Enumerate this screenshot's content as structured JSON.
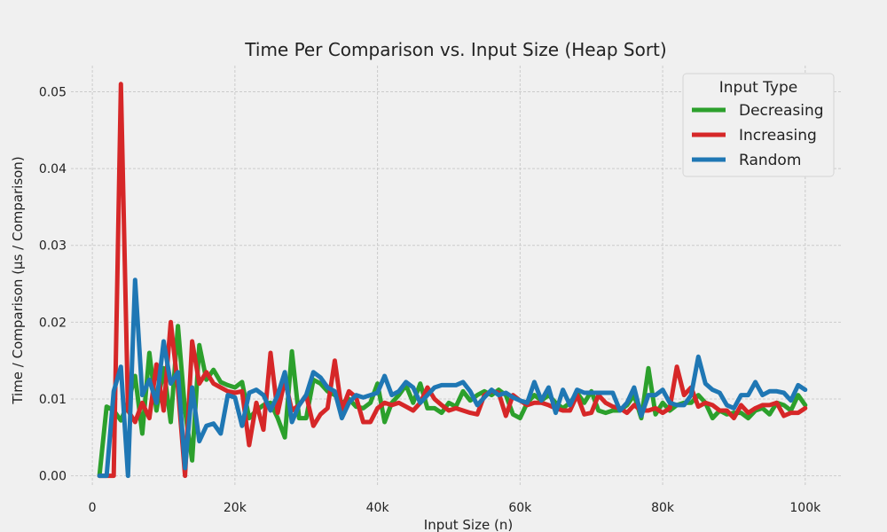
{
  "chart_data": {
    "type": "line",
    "title": "Time Per Comparison vs. Input Size (Heap Sort)",
    "xlabel": "Input Size (n)",
    "ylabel": "Time / Comparison (μs / Comparison)",
    "xlim": [
      -3000,
      105000
    ],
    "ylim": [
      -0.0012,
      0.0534
    ],
    "x_ticks": [
      0,
      20000,
      40000,
      60000,
      80000,
      100000
    ],
    "x_tick_labels": [
      "0",
      "20k",
      "40k",
      "60k",
      "80k",
      "100k"
    ],
    "y_ticks": [
      0.0,
      0.01,
      0.02,
      0.03,
      0.04,
      0.05
    ],
    "y_tick_labels": [
      "0.00",
      "0.01",
      "0.02",
      "0.03",
      "0.04",
      "0.05"
    ],
    "grid": true,
    "legend": {
      "title": "Input Type",
      "position": "top-right"
    },
    "series": [
      {
        "name": "Decreasing",
        "color": "#2ca02c",
        "points": [
          [
            1000,
            0.0
          ],
          [
            2000,
            0.009
          ],
          [
            3000,
            0.0085
          ],
          [
            4000,
            0.0072
          ],
          [
            5000,
            0.0095
          ],
          [
            6000,
            0.013
          ],
          [
            7000,
            0.0055
          ],
          [
            8000,
            0.016
          ],
          [
            9000,
            0.0085
          ],
          [
            10000,
            0.014
          ],
          [
            11000,
            0.007
          ],
          [
            12000,
            0.0195
          ],
          [
            13000,
            0.0085
          ],
          [
            14000,
            0.002
          ],
          [
            15000,
            0.017
          ],
          [
            16000,
            0.0125
          ],
          [
            17000,
            0.0138
          ],
          [
            18000,
            0.0122
          ],
          [
            19000,
            0.0118
          ],
          [
            20000,
            0.0115
          ],
          [
            21000,
            0.0122
          ],
          [
            22000,
            0.0075
          ],
          [
            23000,
            0.0085
          ],
          [
            24000,
            0.0092
          ],
          [
            25000,
            0.0095
          ],
          [
            26000,
            0.0075
          ],
          [
            27000,
            0.005
          ],
          [
            28000,
            0.0162
          ],
          [
            29000,
            0.0075
          ],
          [
            30000,
            0.0075
          ],
          [
            31000,
            0.0125
          ],
          [
            32000,
            0.012
          ],
          [
            33000,
            0.011
          ],
          [
            34000,
            0.0105
          ],
          [
            35000,
            0.0095
          ],
          [
            36000,
            0.01
          ],
          [
            37000,
            0.009
          ],
          [
            38000,
            0.0088
          ],
          [
            39000,
            0.0095
          ],
          [
            40000,
            0.012
          ],
          [
            41000,
            0.007
          ],
          [
            42000,
            0.0095
          ],
          [
            43000,
            0.0105
          ],
          [
            44000,
            0.0118
          ],
          [
            45000,
            0.0095
          ],
          [
            46000,
            0.012
          ],
          [
            47000,
            0.0088
          ],
          [
            48000,
            0.0088
          ],
          [
            49000,
            0.0082
          ],
          [
            50000,
            0.0095
          ],
          [
            51000,
            0.009
          ],
          [
            52000,
            0.011
          ],
          [
            53000,
            0.0098
          ],
          [
            54000,
            0.0105
          ],
          [
            55000,
            0.011
          ],
          [
            56000,
            0.0105
          ],
          [
            57000,
            0.0112
          ],
          [
            58000,
            0.0105
          ],
          [
            59000,
            0.008
          ],
          [
            60000,
            0.0075
          ],
          [
            61000,
            0.0095
          ],
          [
            62000,
            0.0105
          ],
          [
            63000,
            0.0098
          ],
          [
            64000,
            0.0105
          ],
          [
            65000,
            0.0095
          ],
          [
            66000,
            0.0088
          ],
          [
            67000,
            0.0095
          ],
          [
            68000,
            0.0108
          ],
          [
            69000,
            0.0095
          ],
          [
            70000,
            0.011
          ],
          [
            71000,
            0.0085
          ],
          [
            72000,
            0.0082
          ],
          [
            73000,
            0.0085
          ],
          [
            74000,
            0.0085
          ],
          [
            75000,
            0.0092
          ],
          [
            76000,
            0.0105
          ],
          [
            77000,
            0.0075
          ],
          [
            78000,
            0.014
          ],
          [
            79000,
            0.008
          ],
          [
            80000,
            0.0095
          ],
          [
            81000,
            0.0085
          ],
          [
            82000,
            0.0092
          ],
          [
            83000,
            0.0095
          ],
          [
            84000,
            0.0095
          ],
          [
            85000,
            0.0105
          ],
          [
            86000,
            0.0095
          ],
          [
            87000,
            0.0075
          ],
          [
            88000,
            0.0085
          ],
          [
            89000,
            0.008
          ],
          [
            90000,
            0.0082
          ],
          [
            91000,
            0.0082
          ],
          [
            92000,
            0.0075
          ],
          [
            93000,
            0.0085
          ],
          [
            94000,
            0.0088
          ],
          [
            95000,
            0.008
          ],
          [
            96000,
            0.0095
          ],
          [
            97000,
            0.0092
          ],
          [
            98000,
            0.0085
          ],
          [
            99000,
            0.0105
          ],
          [
            100000,
            0.0092
          ]
        ]
      },
      {
        "name": "Increasing",
        "color": "#d62728",
        "points": [
          [
            1000,
            0.0
          ],
          [
            2000,
            0.0
          ],
          [
            3000,
            0.0
          ],
          [
            4000,
            0.051
          ],
          [
            5000,
            0.0085
          ],
          [
            6000,
            0.007
          ],
          [
            7000,
            0.0095
          ],
          [
            8000,
            0.0075
          ],
          [
            9000,
            0.0145
          ],
          [
            10000,
            0.0085
          ],
          [
            11000,
            0.02
          ],
          [
            12000,
            0.0115
          ],
          [
            13000,
            0.0
          ],
          [
            14000,
            0.0175
          ],
          [
            15000,
            0.012
          ],
          [
            16000,
            0.0135
          ],
          [
            17000,
            0.012
          ],
          [
            18000,
            0.0115
          ],
          [
            19000,
            0.011
          ],
          [
            20000,
            0.0108
          ],
          [
            21000,
            0.011
          ],
          [
            22000,
            0.004
          ],
          [
            23000,
            0.0095
          ],
          [
            24000,
            0.006
          ],
          [
            25000,
            0.016
          ],
          [
            26000,
            0.0082
          ],
          [
            27000,
            0.0125
          ],
          [
            28000,
            0.0085
          ],
          [
            29000,
            0.0092
          ],
          [
            30000,
            0.0105
          ],
          [
            31000,
            0.0065
          ],
          [
            32000,
            0.008
          ],
          [
            33000,
            0.0088
          ],
          [
            34000,
            0.015
          ],
          [
            35000,
            0.0085
          ],
          [
            36000,
            0.011
          ],
          [
            37000,
            0.0102
          ],
          [
            38000,
            0.007
          ],
          [
            39000,
            0.007
          ],
          [
            40000,
            0.0088
          ],
          [
            41000,
            0.0095
          ],
          [
            42000,
            0.0092
          ],
          [
            43000,
            0.0095
          ],
          [
            44000,
            0.009
          ],
          [
            45000,
            0.0085
          ],
          [
            46000,
            0.0095
          ],
          [
            47000,
            0.0115
          ],
          [
            48000,
            0.01
          ],
          [
            49000,
            0.0092
          ],
          [
            50000,
            0.0085
          ],
          [
            51000,
            0.0088
          ],
          [
            52000,
            0.0085
          ],
          [
            53000,
            0.0082
          ],
          [
            54000,
            0.008
          ],
          [
            55000,
            0.0105
          ],
          [
            56000,
            0.011
          ],
          [
            57000,
            0.0108
          ],
          [
            58000,
            0.0078
          ],
          [
            59000,
            0.0105
          ],
          [
            60000,
            0.0098
          ],
          [
            61000,
            0.0092
          ],
          [
            62000,
            0.0095
          ],
          [
            63000,
            0.0095
          ],
          [
            64000,
            0.0092
          ],
          [
            65000,
            0.0088
          ],
          [
            66000,
            0.0085
          ],
          [
            67000,
            0.0085
          ],
          [
            68000,
            0.0105
          ],
          [
            69000,
            0.008
          ],
          [
            70000,
            0.0082
          ],
          [
            71000,
            0.0105
          ],
          [
            72000,
            0.0095
          ],
          [
            73000,
            0.009
          ],
          [
            74000,
            0.0088
          ],
          [
            75000,
            0.0082
          ],
          [
            76000,
            0.0092
          ],
          [
            77000,
            0.0085
          ],
          [
            78000,
            0.0085
          ],
          [
            79000,
            0.0088
          ],
          [
            80000,
            0.0082
          ],
          [
            81000,
            0.0088
          ],
          [
            82000,
            0.0142
          ],
          [
            83000,
            0.0105
          ],
          [
            84000,
            0.0115
          ],
          [
            85000,
            0.009
          ],
          [
            86000,
            0.0095
          ],
          [
            87000,
            0.0092
          ],
          [
            88000,
            0.0085
          ],
          [
            89000,
            0.0085
          ],
          [
            90000,
            0.0075
          ],
          [
            91000,
            0.0092
          ],
          [
            92000,
            0.0082
          ],
          [
            93000,
            0.0088
          ],
          [
            94000,
            0.0092
          ],
          [
            95000,
            0.0092
          ],
          [
            96000,
            0.0095
          ],
          [
            97000,
            0.0078
          ],
          [
            98000,
            0.0082
          ],
          [
            99000,
            0.0082
          ],
          [
            100000,
            0.0088
          ]
        ]
      },
      {
        "name": "Random",
        "color": "#1f77b4",
        "points": [
          [
            1000,
            0.0
          ],
          [
            2000,
            0.0
          ],
          [
            3000,
            0.011
          ],
          [
            4000,
            0.0142
          ],
          [
            5000,
            0.0
          ],
          [
            6000,
            0.0255
          ],
          [
            7000,
            0.0105
          ],
          [
            8000,
            0.0125
          ],
          [
            9000,
            0.0095
          ],
          [
            10000,
            0.0175
          ],
          [
            11000,
            0.012
          ],
          [
            12000,
            0.0135
          ],
          [
            13000,
            0.001
          ],
          [
            14000,
            0.0115
          ],
          [
            15000,
            0.0045
          ],
          [
            16000,
            0.0065
          ],
          [
            17000,
            0.0068
          ],
          [
            18000,
            0.0055
          ],
          [
            19000,
            0.0105
          ],
          [
            20000,
            0.0102
          ],
          [
            21000,
            0.0065
          ],
          [
            22000,
            0.0108
          ],
          [
            23000,
            0.0112
          ],
          [
            24000,
            0.0105
          ],
          [
            25000,
            0.0085
          ],
          [
            26000,
            0.0105
          ],
          [
            27000,
            0.0135
          ],
          [
            28000,
            0.007
          ],
          [
            29000,
            0.0092
          ],
          [
            30000,
            0.0105
          ],
          [
            31000,
            0.0135
          ],
          [
            32000,
            0.0128
          ],
          [
            33000,
            0.0115
          ],
          [
            34000,
            0.011
          ],
          [
            35000,
            0.0075
          ],
          [
            36000,
            0.0095
          ],
          [
            37000,
            0.0105
          ],
          [
            38000,
            0.0102
          ],
          [
            39000,
            0.0105
          ],
          [
            40000,
            0.0108
          ],
          [
            41000,
            0.013
          ],
          [
            42000,
            0.0105
          ],
          [
            43000,
            0.011
          ],
          [
            44000,
            0.0122
          ],
          [
            45000,
            0.0115
          ],
          [
            46000,
            0.0095
          ],
          [
            47000,
            0.0105
          ],
          [
            48000,
            0.0115
          ],
          [
            49000,
            0.0118
          ],
          [
            50000,
            0.0118
          ],
          [
            51000,
            0.0118
          ],
          [
            52000,
            0.0122
          ],
          [
            53000,
            0.011
          ],
          [
            54000,
            0.0092
          ],
          [
            55000,
            0.0102
          ],
          [
            56000,
            0.0112
          ],
          [
            57000,
            0.0105
          ],
          [
            58000,
            0.0108
          ],
          [
            59000,
            0.0102
          ],
          [
            60000,
            0.0098
          ],
          [
            61000,
            0.0095
          ],
          [
            62000,
            0.0122
          ],
          [
            63000,
            0.0098
          ],
          [
            64000,
            0.0115
          ],
          [
            65000,
            0.0082
          ],
          [
            66000,
            0.0112
          ],
          [
            67000,
            0.0092
          ],
          [
            68000,
            0.0112
          ],
          [
            69000,
            0.0108
          ],
          [
            70000,
            0.0108
          ],
          [
            71000,
            0.0108
          ],
          [
            72000,
            0.0108
          ],
          [
            73000,
            0.0108
          ],
          [
            74000,
            0.0085
          ],
          [
            75000,
            0.0095
          ],
          [
            76000,
            0.0115
          ],
          [
            77000,
            0.0078
          ],
          [
            78000,
            0.0105
          ],
          [
            79000,
            0.0105
          ],
          [
            80000,
            0.0112
          ],
          [
            81000,
            0.0095
          ],
          [
            82000,
            0.0092
          ],
          [
            83000,
            0.0092
          ],
          [
            84000,
            0.0105
          ],
          [
            85000,
            0.0155
          ],
          [
            86000,
            0.012
          ],
          [
            87000,
            0.0112
          ],
          [
            88000,
            0.0108
          ],
          [
            89000,
            0.0092
          ],
          [
            90000,
            0.0088
          ],
          [
            91000,
            0.0105
          ],
          [
            92000,
            0.0105
          ],
          [
            93000,
            0.0122
          ],
          [
            94000,
            0.0105
          ],
          [
            95000,
            0.011
          ],
          [
            96000,
            0.011
          ],
          [
            97000,
            0.0108
          ],
          [
            98000,
            0.0098
          ],
          [
            99000,
            0.0118
          ],
          [
            100000,
            0.0112
          ]
        ]
      }
    ]
  }
}
